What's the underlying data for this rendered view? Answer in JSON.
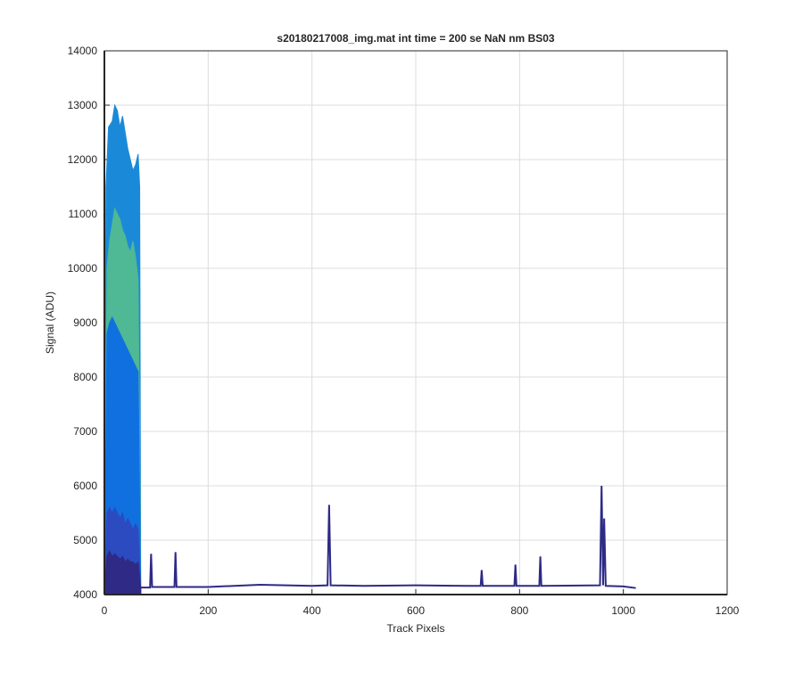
{
  "chart_data": {
    "type": "area",
    "title": "s20180217008_img.mat int time = 200 se  NaN nm BS03",
    "x_label": "Track Pixels",
    "y_label": "Signal (ADU)",
    "xlim": [
      0,
      1200
    ],
    "xticks": [
      0,
      200,
      400,
      600,
      800,
      1000,
      1200
    ],
    "ylim": [
      4000,
      14000
    ],
    "yticks": [
      4000,
      5000,
      6000,
      7000,
      8000,
      9000,
      10000,
      11000,
      12000,
      13000,
      14000
    ],
    "grid": true,
    "series": [
      {
        "color": "#1a8ad8",
        "x": [
          0,
          3,
          8,
          15,
          20,
          25,
          30,
          35,
          40,
          45,
          50,
          55,
          60,
          65,
          68,
          70
        ],
        "values": [
          4100,
          11500,
          12600,
          12700,
          13000,
          12900,
          12600,
          12800,
          12500,
          12200,
          12000,
          11800,
          11900,
          12100,
          11500,
          4100
        ]
      },
      {
        "color": "#4fb894",
        "x": [
          0,
          5,
          10,
          15,
          20,
          25,
          30,
          35,
          40,
          45,
          50,
          55,
          60,
          65,
          70
        ],
        "values": [
          4100,
          10000,
          10500,
          10800,
          11100,
          11000,
          10900,
          10700,
          10600,
          10400,
          10300,
          10500,
          10200,
          9800,
          4100
        ]
      },
      {
        "color": "#1070e0",
        "x": [
          0,
          5,
          10,
          15,
          20,
          25,
          30,
          35,
          40,
          45,
          50,
          55,
          60,
          65,
          70
        ],
        "values": [
          4100,
          8800,
          9000,
          9100,
          9000,
          8900,
          8800,
          8700,
          8600,
          8500,
          8400,
          8300,
          8200,
          8100,
          4100
        ]
      },
      {
        "color": "#2c4bc0",
        "x": [
          0,
          5,
          10,
          15,
          20,
          25,
          30,
          35,
          40,
          45,
          50,
          55,
          60,
          65,
          70
        ],
        "values": [
          4100,
          5500,
          5600,
          5500,
          5600,
          5500,
          5400,
          5500,
          5300,
          5400,
          5300,
          5200,
          5300,
          5200,
          4100
        ]
      },
      {
        "color": "#2e2a85",
        "x": [
          0,
          5,
          10,
          15,
          20,
          25,
          30,
          35,
          40,
          45,
          50,
          55,
          60,
          65,
          70
        ],
        "values": [
          4100,
          4700,
          4800,
          4700,
          4750,
          4700,
          4650,
          4700,
          4600,
          4650,
          4600,
          4600,
          4550,
          4600,
          4100
        ]
      },
      {
        "color": "#2e2a85",
        "type": "line",
        "x": [
          0,
          72,
          88,
          90,
          92,
          135,
          137,
          139,
          200,
          300,
          400,
          430,
          433,
          436,
          500,
          600,
          700,
          725,
          727,
          729,
          790,
          792,
          794,
          838,
          840,
          842,
          955,
          958,
          961,
          963,
          966,
          1000,
          1024
        ],
        "values": [
          4100,
          4130,
          4130,
          4750,
          4140,
          4140,
          4780,
          4140,
          4140,
          4180,
          4160,
          4170,
          5650,
          4170,
          4160,
          4170,
          4160,
          4160,
          4450,
          4160,
          4160,
          4550,
          4160,
          4160,
          4700,
          4160,
          4170,
          6000,
          4170,
          5400,
          4160,
          4150,
          4120
        ]
      }
    ]
  }
}
